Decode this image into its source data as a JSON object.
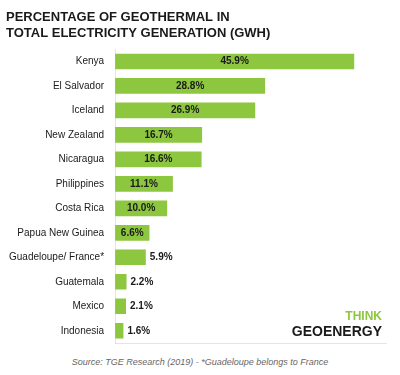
{
  "chart_data": {
    "type": "bar",
    "orientation": "horizontal",
    "title": "PERCENTAGE OF GEOTHERMAL IN\nTOTAL ELECTRICITY GENERATION (GWH)",
    "categories": [
      "Kenya",
      "El Salvador",
      "Iceland",
      "New Zealand",
      "Nicaragua",
      "Philippines",
      "Costa Rica",
      "Papua New Guinea",
      "Guadeloupe/ France*",
      "Guatemala",
      "Mexico",
      "Indonesia"
    ],
    "values": [
      45.9,
      28.8,
      26.9,
      16.7,
      16.6,
      11.1,
      10.0,
      6.6,
      5.9,
      2.2,
      2.1,
      1.6
    ],
    "value_labels": [
      "45.9%",
      "28.8%",
      "26.9%",
      "16.7%",
      "16.6%",
      "11.1%",
      "10.0%",
      "6.6%",
      "5.9%",
      "2.2%",
      "2.1%",
      "1.6%"
    ],
    "data_labels": true,
    "color": "#8dc63f",
    "xlim": [
      0,
      52
    ],
    "grid": false,
    "tick_labels": "y",
    "annotations": [
      "Source: TGE Research (2019) - *Guadeloupe belongs to France",
      "THINK",
      "GEOENERGY"
    ]
  }
}
